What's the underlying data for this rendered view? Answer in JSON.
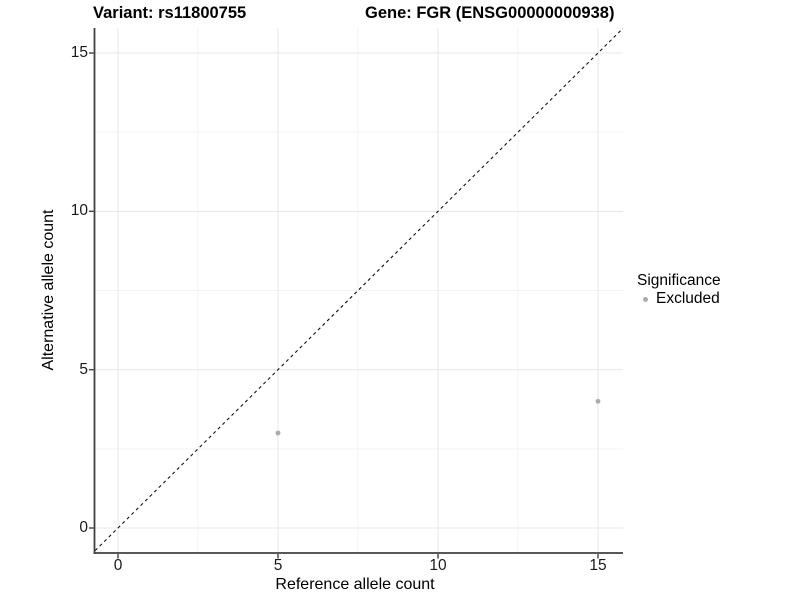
{
  "page": {
    "background": "#ffffff"
  },
  "chart_data": {
    "type": "scatter",
    "titles": {
      "left": "Variant: rs11800755",
      "right": "Gene: FGR (ENSG00000000938)"
    },
    "xlabel": "Reference allele count",
    "ylabel": "Alternative allele count",
    "x_ticks": [
      0,
      5,
      10,
      15
    ],
    "x_tick_labels": [
      "0",
      "5",
      "10",
      "15"
    ],
    "y_ticks": [
      0,
      5,
      10,
      15
    ],
    "y_tick_labels": [
      "0",
      "5",
      "10",
      "15"
    ],
    "x_minor_ticks": [
      2.5,
      7.5,
      12.5
    ],
    "y_minor_ticks": [
      2.5,
      7.5,
      12.5
    ],
    "xlim": [
      -0.75,
      15.8
    ],
    "ylim": [
      -0.8,
      15.9
    ],
    "grid": true,
    "identity_line": {
      "slope": 1,
      "intercept": 0,
      "style": "dashed",
      "color": "#111111",
      "dash": "3.2,3.2"
    },
    "series": [
      {
        "name": "Excluded",
        "color": "#ababab",
        "points": [
          [
            5,
            3
          ],
          [
            15,
            4
          ]
        ]
      }
    ],
    "legend": {
      "position": "right",
      "title": "Significance",
      "items": [
        {
          "label": "Excluded",
          "color": "#ababab"
        }
      ]
    },
    "colors": {
      "grid_major": "#e7e7e7",
      "grid_minor": "#f3f3f3",
      "axis": "#404040",
      "tick_text": "#1a1a1a",
      "title_text": "#000000"
    }
  }
}
